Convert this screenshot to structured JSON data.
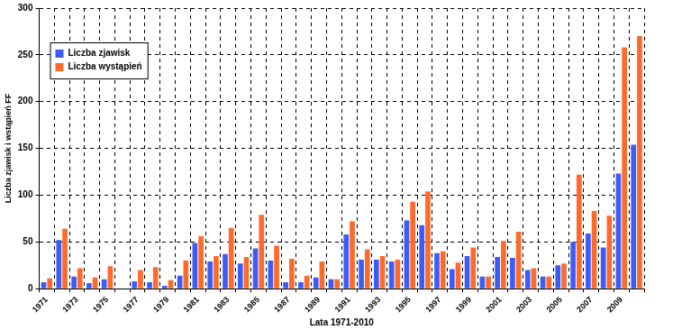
{
  "chart_data": {
    "type": "bar",
    "x_label": "Lata 1971-2010",
    "y_label": "Liczba zjawisk i wstąpień FF",
    "categories": [
      "1971",
      null,
      "1973",
      null,
      "1975",
      null,
      "1977",
      null,
      "1979",
      null,
      "1981",
      null,
      "1983",
      null,
      "1985",
      null,
      "1987",
      null,
      "1989",
      null,
      "1991",
      null,
      "1993",
      null,
      "1995",
      null,
      "1997",
      null,
      "1999",
      null,
      "2001",
      null,
      "2003",
      null,
      "2005",
      null,
      "2007",
      null,
      "2009",
      null
    ],
    "series": [
      {
        "name": "Liczba zjawisk",
        "color": "#3d5cf5",
        "values": [
          7,
          52,
          13,
          6,
          10,
          0,
          8,
          7,
          3,
          14,
          49,
          29,
          37,
          27,
          43,
          30,
          7,
          7,
          12,
          10,
          58,
          31,
          31,
          29,
          73,
          68,
          38,
          21,
          35,
          13,
          34,
          33,
          20,
          13,
          25,
          50,
          59,
          44,
          123,
          154
        ]
      },
      {
        "name": "Liczba wystąpień",
        "color": "#ff6a2b",
        "values": [
          11,
          64,
          22,
          12,
          24,
          0,
          20,
          23,
          9,
          30,
          56,
          35,
          65,
          34,
          79,
          46,
          32,
          14,
          29,
          10,
          72,
          42,
          35,
          31,
          93,
          104,
          40,
          28,
          44,
          13,
          51,
          61,
          22,
          13,
          27,
          122,
          83,
          78,
          258,
          270
        ]
      }
    ],
    "ylim": [
      0,
      300
    ],
    "yticks": [
      0,
      50,
      100,
      150,
      200,
      250,
      300
    ],
    "grid": true,
    "legend": "upper left"
  }
}
